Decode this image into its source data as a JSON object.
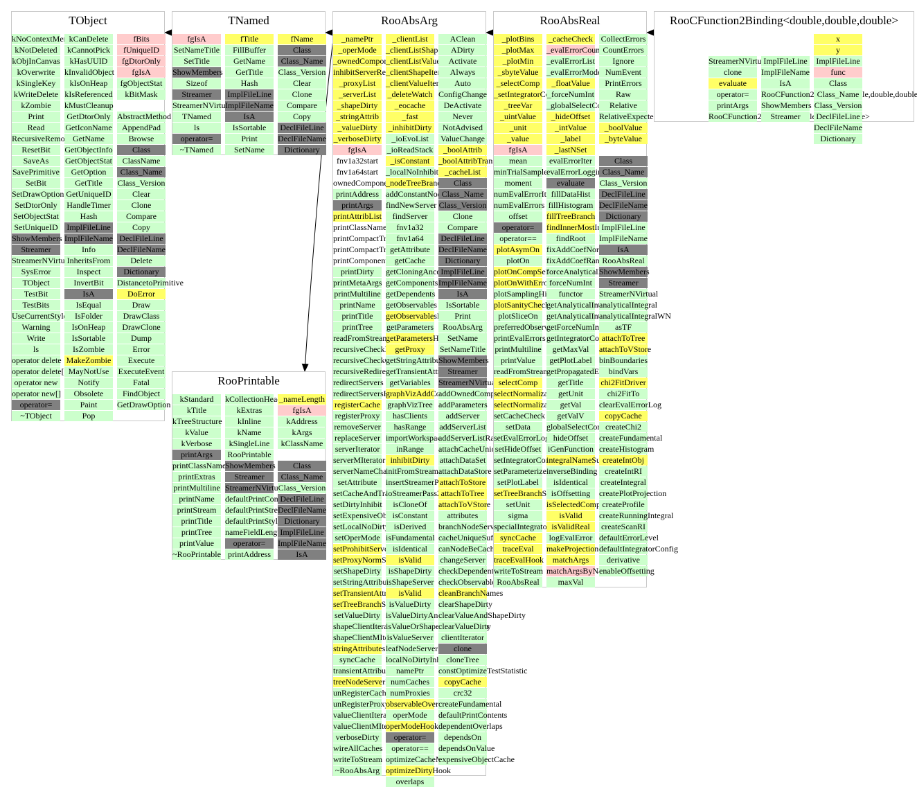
{
  "colors": {
    "public": "#ccffcc",
    "protected": "#ffff66",
    "static": "#ffcccc",
    "class": "#808080"
  },
  "classes": [
    {
      "name": "TObject",
      "columns": [
        {
          "w": "kNoContextMenu kNotDeleted kObjInCanvas kOverwrite kSingleKey kWriteDelete kZombie Print Read RecursiveRemove ResetBit SaveAs SavePrimitive SetBit SetDrawOption SetDtorOnly SetObjectStat SetUniqueID ShowMembers Streamer StreamerNVirtual SysError TObject TestBit TestBits UseCurrentStyle Warning Write ls operator delete operator delete[] operator new operator new[] operator= ~TObject",
          "k": "g g g g g g g g g g g g g g g g g g d d g g g g g g g g g g g g g d g"
        },
        {
          "w": "kCanDelete kCannotPick kHasUUID kInvalidObject kIsOnHeap kIsReferenced kMustCleanup GetDtorOnly GetIconName GetName GetObjectInfo GetObjectStat GetOption GetTitle GetUniqueID HandleTimer Hash ImplFileLine ImplFileName Info InheritsFrom Inspect InvertBit IsA IsEqual IsFolder IsOnHeap IsSortable IsZombie MakeZombie MayNotUse Notify Obsolete Paint Pop",
          "k": "g g g g g g g g g g g g g g g g g d d g g g g d g g g g g y g g g g g"
        },
        {
          "w": "fBits fUniqueID fgDtorOnly fgIsA fgObjectStat kBitMask _ AbstractMethod AppendPad Browse Class ClassName Class_Name Class_Version Clear Clone Compare Copy DeclFileLine DeclFileName Delete Dictionary DistancetoPrimitive DoError Draw DrawClass DrawClone Dump Error Execute ExecuteEvent Fatal FindObject GetDrawOption",
          "k": "p p p p g g _ g g g d g d g g g g g d d g d g y g g g g g g g g g g"
        }
      ]
    },
    {
      "name": "TNamed",
      "columns": [
        {
          "w": "fgIsA SetNameTitle SetTitle ShowMembers Sizeof Streamer StreamerNVirtual TNamed ls operator= ~TNamed",
          "k": "p g g d g d g g g d g"
        },
        {
          "w": "fTitle FillBuffer GetName GetTitle Hash ImplFileLine ImplFileName IsA IsSortable Print SetName",
          "k": "y g g g g d d d g g g"
        },
        {
          "w": "fName Class Class_Name Class_Version Clear Clone Compare Copy DeclFileLine DeclFileName Dictionary",
          "k": "y d d g g g g g d d d"
        }
      ]
    },
    {
      "name": "RooAbsArg",
      "columns": [
        {
          "w": "_namePtr _operMode _ownedComponents inhibitServerRedirect _proxyList _serverList _shapeDirty _stringAttrib _valueDirty _verboseDirty fgIsA fnv1a32start fnv1a64start ownedComponents printAddress printArgs printAttribList printClassName printCompactTree printCompactTreeHook printComponentTree printDirty printMetaArgs printMultiline printName printTitle printTree readFromStream recursiveCheckDependents recursiveCheckObservables recursiveRedirectServers redirectServers redirectServersHook registerCache registerProxy removeServer replaceServer serverIterator serverMIterator serverNameChangeHook setAttribute setCacheAndTrackHints setDirtyInhibit setExpensiveObjectCache setLocalNoDirtyInhibit setOperMode setProhibitServerRedirect setProxyNormSet setShapeDirty setStringAttribute setTransientAttribute setTreeBranchStatus setValueDirty shapeClientIterator shapeClientMIterator stringAttributes syncCache transientAttributes treeNodeServerList unRegisterCache unRegisterProxy valueClientIterator valueClientMIterator verboseDirty wireAllCaches writeToStream ~RooAbsArg",
          "k": "y y y y y y y y y y p w w w g d y w w w w g g g g g g g g g g g g y g g g g g g g g g g g g y y g g y y g g g y g g y g g g g g g g g"
        },
        {
          "w": "_clientList _clientListShape _clientListValue _clientShapeIter _clientValueIter _deleteWatch _eocache _fast _inhibitDirty _ioEvoList _ioReadStack _isConstant _localNoInhibitDirty _nodeTreeBranch addConstantNode findNewServer findServer fnv1a32 fnv1a64 getAttribute getCache getCloningAncestors getComponents getDependents getObservables getObservablesHook getParameters getParametersHook getProxy getStringAttribute getTransientAttribute getVariables graphVizAddConnections graphVizTree hasClients hasRange importWorkspaceHook inRange inhibitDirty initFromStream insertStreamerPass2 ioStreamerPass2Finalize isCloneOf isConstant isDerived isFundamental isIdentical isValid isShapeDirty isShapeServer isValid isValueDirty isValueDirtyAndClear isValueOrShapeDirtyAndClear isValueServer leafNodeServerList localNoDirtyInhibit namePtr numCaches numProxies observableOverlaps operMode operModeHook operator= operator== optimizeCacheMode optimizeDirtyHook overlaps",
          "k": "y y y y y y y y y g g y g y g g g g g g g g g g g y g y y g g g y g g g g g y g g g g g g g g y g g y g g g g g g g g g y g y d g g y g"
        },
        {
          "w": "AClean ADirty Activate Always Auto ConfigChange DeActivate Never NotAdvised ValueChange _boolAttrib _boolAttribTransient _cacheList Class Class_Name Class_Version Clone Compare DeclFileLine DeclFileName Dictionary ImplFileLine ImplFileName IsA IsSortable Print RooAbsArg SetName SetNameTitle ShowMembers Streamer StreamerNVirtual addOwnedComponents addParameters addServer addServerList addServerListRaw attachCacheUniqueSuffix attachDataSet attachDataStore attachToStore attachToTree attachToVStore attributes branchNodeServerList cacheUniqueSuffix canNodeBeCached changeServer checkDependents checkObservables cleanBranchNames clearShapeDirty clearValueAndShapeDirty clearValueDirty clientIterator clone cloneTree constOptimizeTestStatistic copyCache crc32 createFundamental defaultPrintContents dependentOverlaps dependsOn dependsOnValue expensiveObjectCache",
          "k": "g g g g g g g g g g y y y d d d g g d d d d d d g g g g g d d d g g g g g g g g y y y g g g g g g g y g g g g d g g y g g g g g g g"
        }
      ]
    },
    {
      "name": "RooAbsReal",
      "columns": [
        {
          "w": "_plotBins _plotMax _plotMin _sbyteValue _selectComp _setIntegratorConfig _treeVar _uintValue _unit _value fgIsA mean minTrialSamples moment numEvalErrorItems numEvalErrors offset operator= operator== plotAsymOn plotOn plotOnCompSelect plotOnWithErrorBand plotSamplingHint plotSanityChecks plotSliceOn preferredObservableScanOrder printEvalErrors printMultiline printValue readFromStream selectComp selectNormalization selectNormalizationRange setCacheCheck setData setEvalErrorLoggingMode setHideOffset setIntegratorConfig setParameterizeIntegral setPlotLabel setTreeBranchStatus setUnit sigma specialIntegratorConfig syncCache traceEval traceEvalHook writeToStream RooAbsReal",
          "k": "y y y y y y y y y y p g g g g g g d g y g y y g y g g g g g g y y y g g g g g g g y g g g y y y g g"
        },
        {
          "w": "_cacheCheck _evalErrorCount _evalErrorList _evalErrorMode _floatValue _forceNumInt _globalSelectComp _hideOffset _intValue _label _lastNSet evalErrorIter evalErrorLoggingMode evaluate fillDataHist fillHistogram fillTreeBranch findInnerMostIntegration findRoot fixAddCoefNormalization fixAddCoefRange forceAnalyticalInt forceNumInt functor getAnalyticalIntegral getAnalyticalIntegralWN getForceNumInt getIntegratorConfig getMaxVal getPlotLabel getPropagatedError getTitle getUnit getVal getValV globalSelectComp hideOffset iGenFunction integralNameSuffix inverseBinding isIdentical isOffsetting isSelectedComp isValid isValidReal logEvalError makeProjectionSet matchArgs matchArgsByName maxVal",
          "k": "y p g g y g g y y y y g g d g g y y g g g g g g g g g g g g g g g g g g g g y g g g y y y g y y p g"
        },
        {
          "w": "CollectErrors CountErrors Ignore NumEvent PrintErrors Raw Relative RelativeExpected _boolValue _byteValue _ Class Class_Name Class_Version DeclFileLine DeclFileName Dictionary ImplFileLine ImplFileName IsA RooAbsReal ShowMembers Streamer StreamerNVirtual analyticalIntegral analyticalIntegralWN asTF attachToTree attachToVStore binBoundaries bindVars chi2FitDriver chi2FitTo clearEvalErrorLog copyCache createChi2 createFundamental createHistogram createIntObj createIntRI createIntegral createPlotProjection createProfile createRunningIntegral createScanRI defaultErrorLevel defaultIntegratorConfig derivative enableOffsetting",
          "k": "g g g g g g g g y y _ d d g d d d g g d g d d g g g g y y g g y g g y g g g y g g g g g g g g g g"
        }
      ]
    },
    {
      "name": "RooCFunction2Binding<double,double,double>",
      "columns": [
        {
          "w": "_ _ StreamerNVirtual clone evaluate operator= printArgs RooCFunction2Binding<double,double,double>",
          "k": "_ _ g g y g g g"
        },
        {
          "w": "_ _ ImplFileLine ImplFileName IsA RooCFunction2Binding<double,double,double> ShowMembers Streamer",
          "k": "_ _ g g g g g g"
        },
        {
          "w": "x y ImplFileLine func Class Class_Name Class_Version DeclFileLine DeclFileName Dictionary",
          "k": "y y g p g g g g g g"
        }
      ]
    },
    {
      "name": "RooPrintable",
      "columns": [
        {
          "w": "kStandard kTitle kTreeStructure kValue kVerbose printArgs printClassName printExtras printMultiline printName printStream printTitle printTree printValue ~RooPrintable",
          "k": "g g g g g d g g g g g g g g g"
        },
        {
          "w": "kCollectionHeader kExtras kInline kName kSingleLine RooPrintable ShowMembers Streamer StreamerNVirtual defaultPrintContents defaultPrintStream defaultPrintStyle nameFieldLength operator= printAddress",
          "k": "g g g g g g d d d g g g g d g"
        },
        {
          "w": "_nameLength fgIsA kAddress kArgs kClassName _ Class Class_Name Class_Version DeclFileLine DeclFileName Dictionary ImplFileLine ImplFileName IsA",
          "k": "y p g g g _ d d g d d d d d d"
        }
      ]
    }
  ]
}
